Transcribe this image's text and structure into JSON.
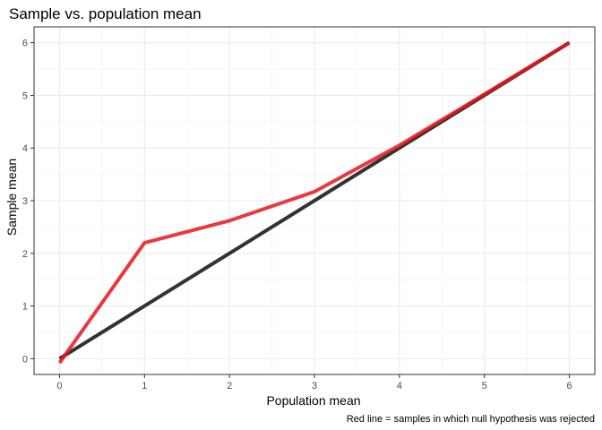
{
  "chart_data": {
    "type": "line",
    "title": "Sample vs. population mean",
    "xlabel": "Population mean",
    "ylabel": "Sample mean",
    "caption": "Red line = samples in which null hypothesis was rejected",
    "xlim": [
      -0.3,
      6.3
    ],
    "ylim": [
      -0.3,
      6.3
    ],
    "x_ticks": [
      0,
      1,
      2,
      3,
      4,
      5,
      6
    ],
    "y_ticks": [
      0,
      1,
      2,
      3,
      4,
      5,
      6
    ],
    "grid": true,
    "legend": "none",
    "series": [
      {
        "color": "#333333",
        "x": [
          0,
          1,
          2,
          3,
          4,
          5,
          6
        ],
        "y": [
          0,
          1,
          2,
          3,
          4,
          5,
          6
        ]
      },
      {
        "color": "#e8141c",
        "opacity": 0.85,
        "x": [
          0,
          1,
          2,
          3,
          4,
          5,
          6
        ],
        "y": [
          -0.08,
          2.2,
          2.62,
          3.17,
          4.05,
          5.02,
          6.0
        ]
      }
    ]
  }
}
